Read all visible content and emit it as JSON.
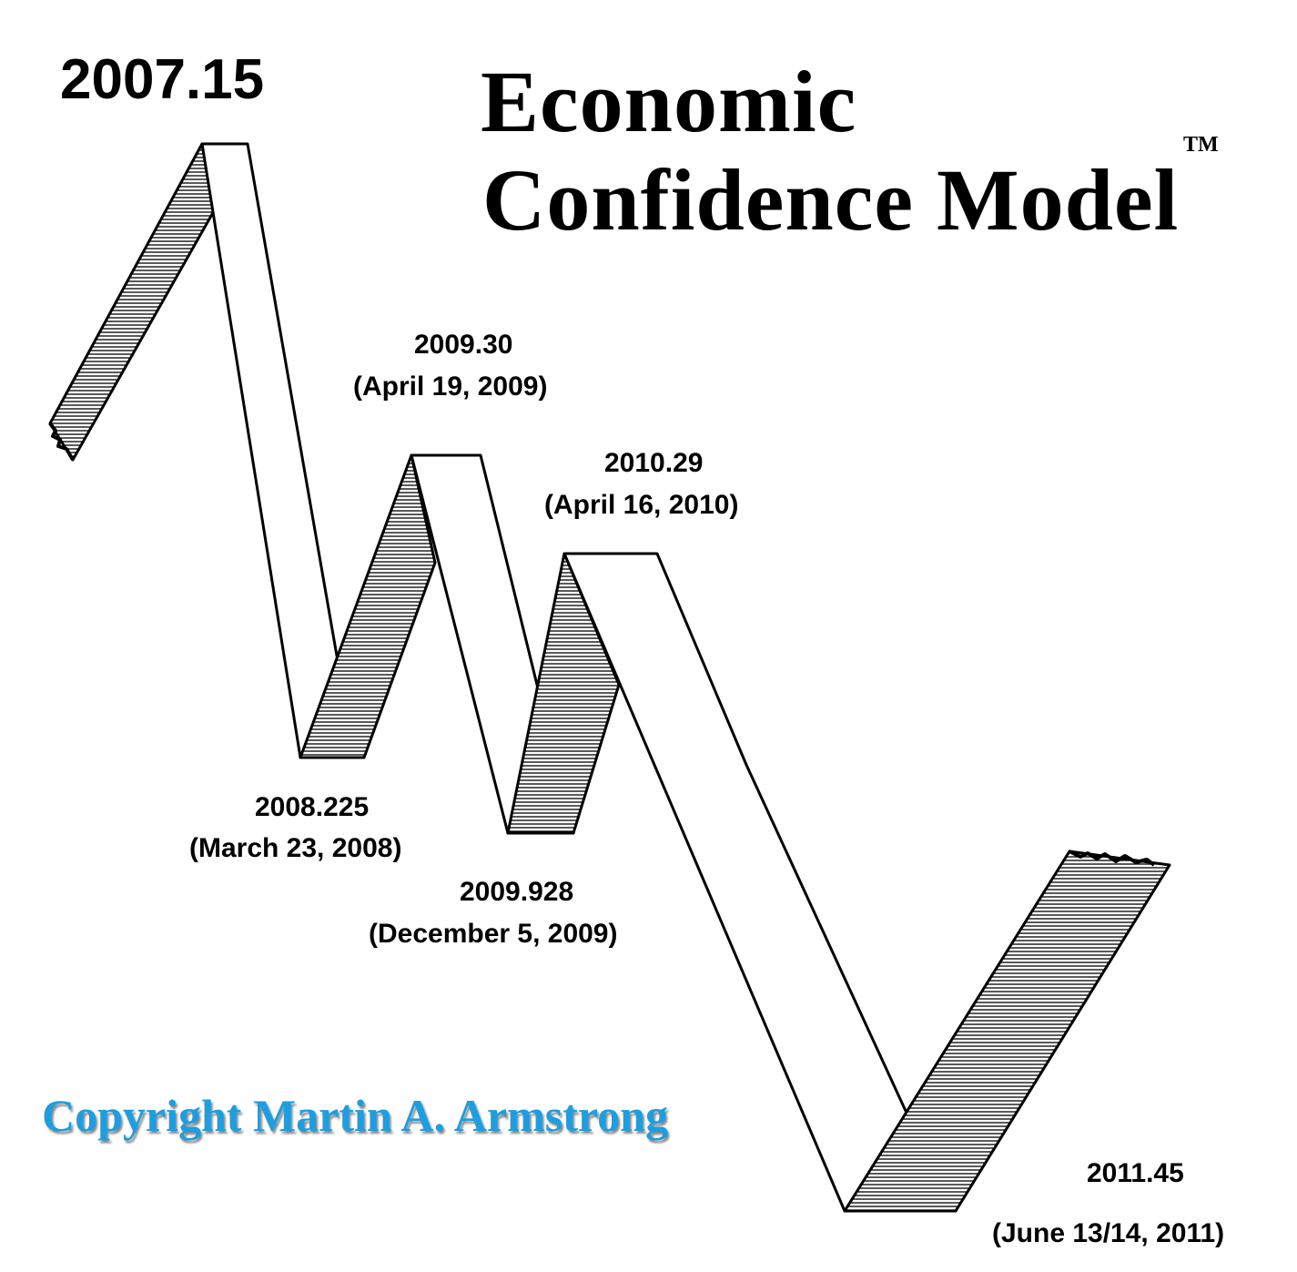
{
  "title": {
    "line1": "Economic",
    "line2": "Confidence Model",
    "trademark": "TM"
  },
  "copyright": "Copyright Martin A. Armstrong",
  "turning_points": [
    {
      "value": "2007.15",
      "date": ""
    },
    {
      "value": "2008.225",
      "date": "(March 23, 2008)"
    },
    {
      "value": "2009.30",
      "date": "(April 19, 2009)"
    },
    {
      "value": "2009.928",
      "date": "(December 5, 2009)"
    },
    {
      "value": "2010.29",
      "date": "(April 16, 2010)"
    },
    {
      "value": "2011.45",
      "date": "(June 13/14, 2011)"
    }
  ],
  "colors": {
    "ink": "#000000",
    "copyright_text": "#1d9ee0",
    "ribbon_face": "#ffffff"
  }
}
